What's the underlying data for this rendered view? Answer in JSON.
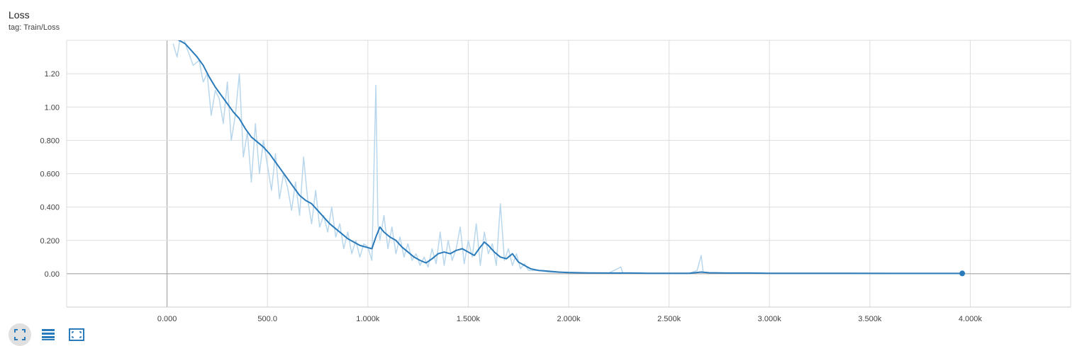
{
  "card": {
    "title": "Loss",
    "tag": "tag: Train/Loss"
  },
  "toolbar": {
    "buttons": [
      {
        "icon": "fit-domain-icon",
        "active": true
      },
      {
        "icon": "list-icon",
        "active": false
      },
      {
        "icon": "expand-icon",
        "active": false
      }
    ]
  },
  "colors": {
    "smoothed_line": "#2b7bba",
    "raw_line": "#b9d7ec",
    "grid": "#dddddd",
    "axis_zero": "#999999"
  },
  "chart_data": {
    "type": "line",
    "title": "Loss",
    "xlabel": "",
    "ylabel": "",
    "xlim": [
      -500,
      4500
    ],
    "ylim": [
      -0.2,
      1.4
    ],
    "grid": true,
    "x_ticks": [
      {
        "value": 0,
        "label": "0.000"
      },
      {
        "value": 500,
        "label": "500.0"
      },
      {
        "value": 1000,
        "label": "1.000k"
      },
      {
        "value": 1500,
        "label": "1.500k"
      },
      {
        "value": 2000,
        "label": "2.000k"
      },
      {
        "value": 2500,
        "label": "2.500k"
      },
      {
        "value": 3000,
        "label": "3.000k"
      },
      {
        "value": 3500,
        "label": "3.500k"
      },
      {
        "value": 4000,
        "label": "4.000k"
      }
    ],
    "y_ticks": [
      {
        "value": 0,
        "label": "0.00"
      },
      {
        "value": 0.2,
        "label": "0.200"
      },
      {
        "value": 0.4,
        "label": "0.400"
      },
      {
        "value": 0.6,
        "label": "0.600"
      },
      {
        "value": 0.8,
        "label": "0.800"
      },
      {
        "value": 1.0,
        "label": "1.00"
      },
      {
        "value": 1.2,
        "label": "1.20"
      }
    ],
    "series": [
      {
        "role": "raw",
        "x": [
          30,
          50,
          70,
          100,
          130,
          160,
          180,
          200,
          220,
          240,
          260,
          280,
          300,
          320,
          340,
          360,
          380,
          400,
          420,
          440,
          460,
          480,
          500,
          520,
          540,
          560,
          580,
          600,
          620,
          640,
          660,
          680,
          700,
          720,
          740,
          760,
          780,
          800,
          820,
          840,
          860,
          880,
          900,
          920,
          940,
          960,
          980,
          1000,
          1020,
          1040,
          1050,
          1060,
          1080,
          1100,
          1120,
          1140,
          1160,
          1180,
          1200,
          1220,
          1240,
          1260,
          1280,
          1300,
          1320,
          1340,
          1360,
          1380,
          1400,
          1420,
          1440,
          1460,
          1480,
          1500,
          1520,
          1540,
          1560,
          1580,
          1600,
          1620,
          1640,
          1660,
          1680,
          1700,
          1720,
          1740,
          1760,
          1780,
          1800,
          1850,
          1900,
          1950,
          2000,
          2100,
          2200,
          2260,
          2270,
          2300,
          2400,
          2500,
          2600,
          2640,
          2660,
          2670,
          2700,
          2800,
          2900,
          3000,
          3200,
          3400,
          3600,
          3800,
          3960
        ],
        "y": [
          1.38,
          1.3,
          1.45,
          1.35,
          1.25,
          1.28,
          1.15,
          1.2,
          0.95,
          1.1,
          1.05,
          0.9,
          1.15,
          0.8,
          0.95,
          1.2,
          0.7,
          0.85,
          0.55,
          0.9,
          0.6,
          0.8,
          0.65,
          0.5,
          0.72,
          0.45,
          0.6,
          0.52,
          0.38,
          0.55,
          0.35,
          0.7,
          0.45,
          0.3,
          0.5,
          0.28,
          0.35,
          0.25,
          0.4,
          0.22,
          0.3,
          0.15,
          0.25,
          0.12,
          0.2,
          0.1,
          0.18,
          0.16,
          0.08,
          1.13,
          0.3,
          0.2,
          0.35,
          0.15,
          0.28,
          0.12,
          0.22,
          0.1,
          0.18,
          0.08,
          0.12,
          0.05,
          0.1,
          0.04,
          0.15,
          0.06,
          0.25,
          0.05,
          0.2,
          0.08,
          0.15,
          0.28,
          0.06,
          0.2,
          0.1,
          0.3,
          0.05,
          0.25,
          0.12,
          0.18,
          0.05,
          0.42,
          0.08,
          0.15,
          0.05,
          0.12,
          0.03,
          0.06,
          0.02,
          0.02,
          0.01,
          0.008,
          0.01,
          0.005,
          0.004,
          0.04,
          0.003,
          0.004,
          0.003,
          0.003,
          0.003,
          0.02,
          0.11,
          0.01,
          0.006,
          0.004,
          0.004,
          0.003,
          0.003,
          0.003,
          0.003,
          0.003,
          0.002
        ]
      },
      {
        "role": "smoothed",
        "x": [
          30,
          60,
          90,
          120,
          150,
          180,
          210,
          240,
          270,
          300,
          330,
          360,
          390,
          420,
          450,
          480,
          510,
          540,
          570,
          600,
          630,
          660,
          690,
          720,
          750,
          780,
          810,
          840,
          870,
          900,
          930,
          960,
          990,
          1020,
          1040,
          1060,
          1080,
          1110,
          1140,
          1170,
          1200,
          1230,
          1260,
          1290,
          1320,
          1350,
          1380,
          1410,
          1440,
          1470,
          1500,
          1530,
          1560,
          1580,
          1600,
          1630,
          1660,
          1690,
          1720,
          1750,
          1780,
          1810,
          1850,
          1900,
          1950,
          2000,
          2100,
          2200,
          2300,
          2400,
          2500,
          2600,
          2660,
          2700,
          2800,
          2900,
          3000,
          3200,
          3400,
          3600,
          3800,
          3960
        ],
        "y": [
          1.42,
          1.4,
          1.38,
          1.34,
          1.3,
          1.25,
          1.18,
          1.12,
          1.07,
          1.02,
          0.97,
          0.93,
          0.87,
          0.82,
          0.79,
          0.76,
          0.72,
          0.67,
          0.62,
          0.57,
          0.52,
          0.47,
          0.44,
          0.42,
          0.38,
          0.34,
          0.3,
          0.27,
          0.24,
          0.21,
          0.19,
          0.17,
          0.16,
          0.15,
          0.22,
          0.28,
          0.25,
          0.22,
          0.2,
          0.16,
          0.13,
          0.1,
          0.08,
          0.065,
          0.09,
          0.12,
          0.13,
          0.12,
          0.14,
          0.15,
          0.13,
          0.11,
          0.16,
          0.19,
          0.17,
          0.13,
          0.1,
          0.09,
          0.12,
          0.07,
          0.05,
          0.03,
          0.02,
          0.015,
          0.01,
          0.007,
          0.005,
          0.004,
          0.004,
          0.003,
          0.003,
          0.003,
          0.01,
          0.006,
          0.004,
          0.004,
          0.003,
          0.003,
          0.003,
          0.002,
          0.002,
          0.002
        ]
      }
    ],
    "last_point": {
      "x": 3960,
      "y": 0.002
    }
  }
}
